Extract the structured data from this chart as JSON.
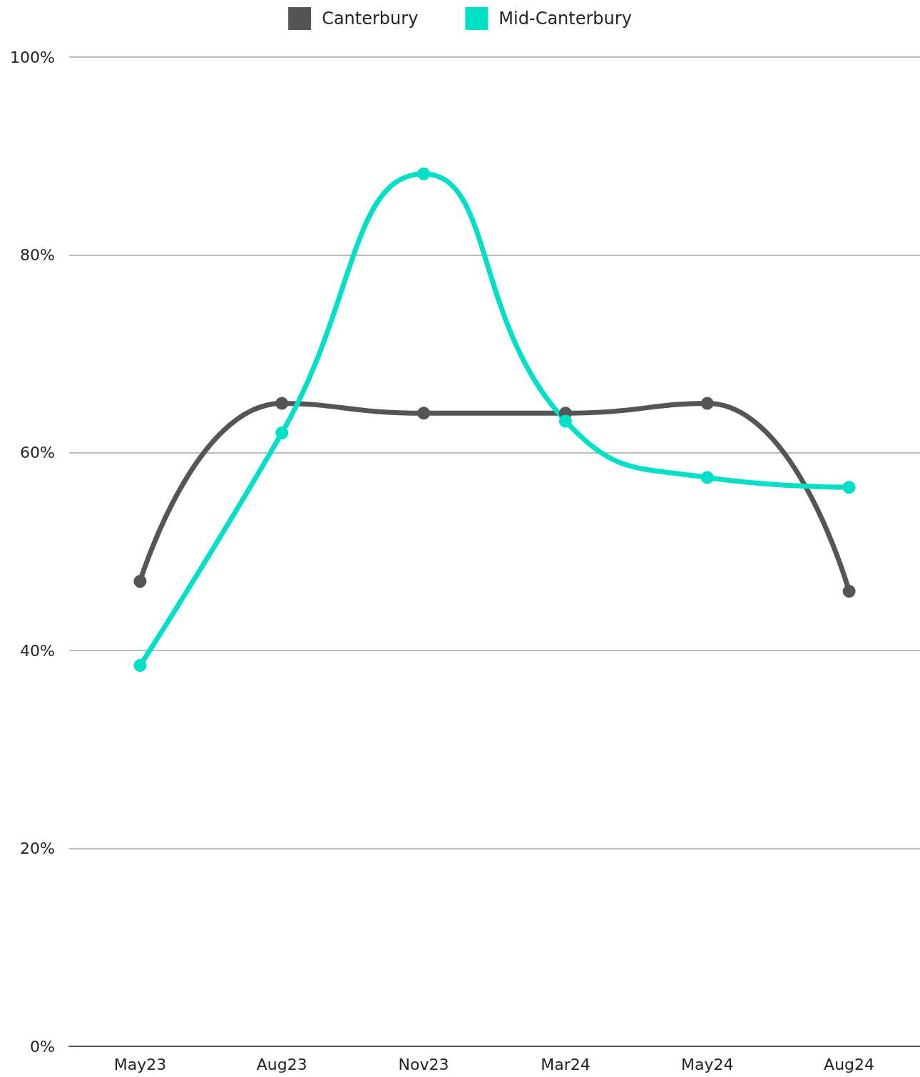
{
  "chart_data": {
    "type": "line",
    "categories": [
      "May23",
      "Aug23",
      "Nov23",
      "Mar24",
      "May24",
      "Aug24"
    ],
    "series": [
      {
        "name": "Canterbury",
        "color": "#555555",
        "values": [
          47,
          65,
          64,
          64,
          65,
          46
        ]
      },
      {
        "name": "Mid-Canterbury",
        "color": "#00e0c6",
        "values": [
          38.5,
          62,
          88.2,
          63.2,
          57.5,
          56.5
        ]
      }
    ],
    "ylim": [
      0,
      100
    ],
    "yticks": [
      {
        "value": 0,
        "label": "0%"
      },
      {
        "value": 20,
        "label": "20%"
      },
      {
        "value": 40,
        "label": "40%"
      },
      {
        "value": 60,
        "label": "60%"
      },
      {
        "value": 80,
        "label": "80%"
      },
      {
        "value": 100,
        "label": "100%"
      }
    ],
    "grid": "y",
    "legend": "top",
    "marker": "circle",
    "line_style": "solid"
  }
}
